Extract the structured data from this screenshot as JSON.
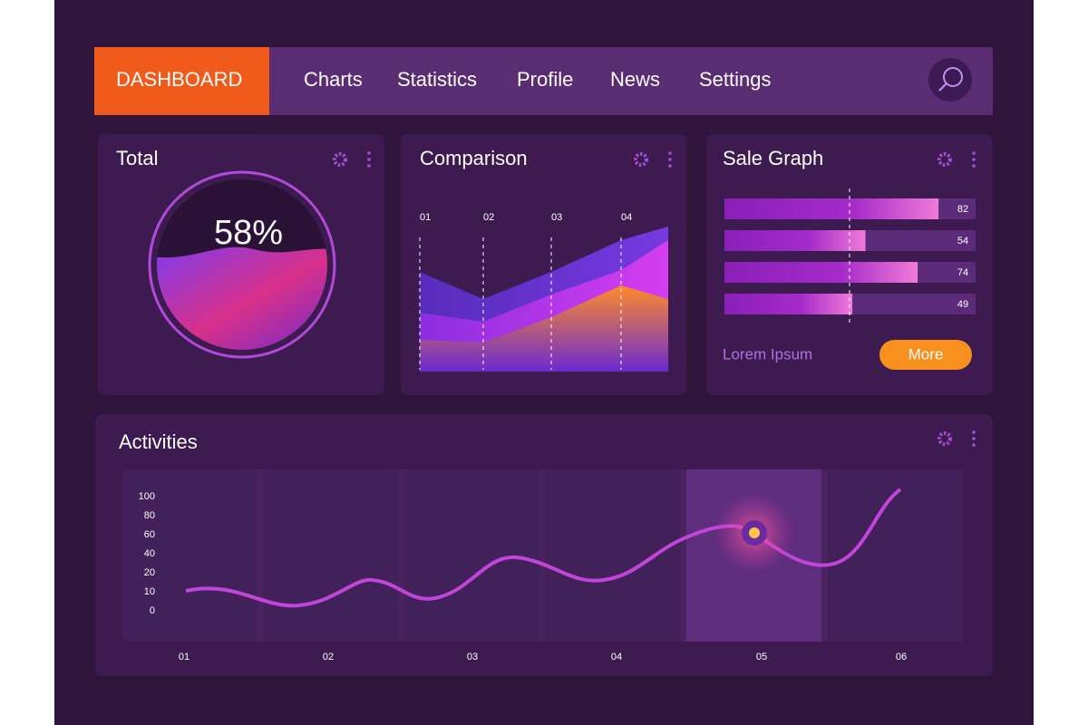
{
  "nav": {
    "active": "DASHBOARD",
    "items": [
      "Charts",
      "Statistics",
      "Profile",
      "News",
      "Settings"
    ]
  },
  "total": {
    "title": "Total",
    "value": 58,
    "value_label": "58%"
  },
  "comparison": {
    "title": "Comparison",
    "categories": [
      "01",
      "02",
      "03",
      "04"
    ]
  },
  "sale_graph": {
    "title": "Sale Graph",
    "values": [
      82,
      54,
      74,
      49
    ],
    "xlim": [
      0,
      100
    ],
    "link": "Lorem Ipsum",
    "button": "More"
  },
  "activities": {
    "title": "Activities",
    "yticks": [
      100,
      80,
      60,
      40,
      20,
      10,
      0
    ],
    "categories": [
      "01",
      "02",
      "03",
      "04",
      "05",
      "06"
    ]
  }
}
